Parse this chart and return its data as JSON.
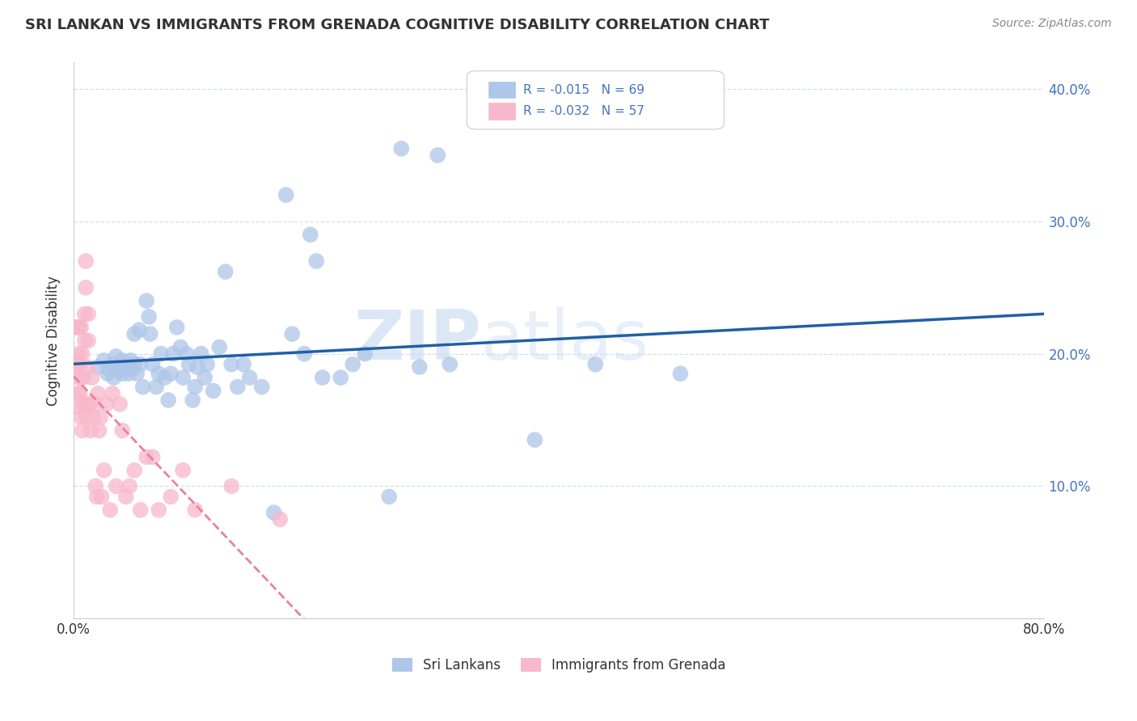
{
  "title": "SRI LANKAN VS IMMIGRANTS FROM GRENADA COGNITIVE DISABILITY CORRELATION CHART",
  "source": "Source: ZipAtlas.com",
  "ylabel": "Cognitive Disability",
  "xmin": 0.0,
  "xmax": 0.8,
  "ymin": 0.0,
  "ymax": 0.42,
  "yticks": [
    0.1,
    0.2,
    0.3,
    0.4
  ],
  "ytick_labels": [
    "10.0%",
    "20.0%",
    "30.0%",
    "40.0%"
  ],
  "xticks": [
    0.0,
    0.1,
    0.2,
    0.3,
    0.4,
    0.5,
    0.6,
    0.7,
    0.8
  ],
  "xtick_labels": [
    "0.0%",
    "",
    "",
    "",
    "",
    "",
    "",
    "",
    "80.0%"
  ],
  "legend_r1": "-0.015",
  "legend_n1": "69",
  "legend_r2": "-0.032",
  "legend_n2": "57",
  "sri_lanka_color": "#aec6e8",
  "grenada_color": "#f7b8cb",
  "sri_lanka_edge_color": "#aec6e8",
  "grenada_edge_color": "#f7b8cb",
  "sri_lanka_line_color": "#1f5fa6",
  "grenada_line_color": "#e8829a",
  "watermark_zip": "ZIP",
  "watermark_atlas": "atlas",
  "note_color": "#4472c4",
  "sri_lanka_x": [
    0.02,
    0.025,
    0.028,
    0.03,
    0.032,
    0.033,
    0.035,
    0.038,
    0.04,
    0.04,
    0.042,
    0.044,
    0.045,
    0.047,
    0.048,
    0.05,
    0.05,
    0.052,
    0.054,
    0.055,
    0.057,
    0.06,
    0.062,
    0.063,
    0.065,
    0.068,
    0.07,
    0.072,
    0.075,
    0.078,
    0.08,
    0.082,
    0.085,
    0.088,
    0.09,
    0.093,
    0.095,
    0.098,
    0.1,
    0.102,
    0.105,
    0.108,
    0.11,
    0.115,
    0.12,
    0.125,
    0.13,
    0.135,
    0.14,
    0.145,
    0.155,
    0.165,
    0.175,
    0.18,
    0.19,
    0.195,
    0.2,
    0.205,
    0.22,
    0.23,
    0.24,
    0.26,
    0.27,
    0.285,
    0.3,
    0.31,
    0.38,
    0.43,
    0.5
  ],
  "sri_lanka_y": [
    0.19,
    0.195,
    0.185,
    0.188,
    0.192,
    0.182,
    0.198,
    0.188,
    0.195,
    0.185,
    0.19,
    0.192,
    0.185,
    0.195,
    0.188,
    0.215,
    0.192,
    0.185,
    0.218,
    0.192,
    0.175,
    0.24,
    0.228,
    0.215,
    0.192,
    0.175,
    0.185,
    0.2,
    0.182,
    0.165,
    0.185,
    0.2,
    0.22,
    0.205,
    0.182,
    0.2,
    0.192,
    0.165,
    0.175,
    0.19,
    0.2,
    0.182,
    0.192,
    0.172,
    0.205,
    0.262,
    0.192,
    0.175,
    0.192,
    0.182,
    0.175,
    0.08,
    0.32,
    0.215,
    0.2,
    0.29,
    0.27,
    0.182,
    0.182,
    0.192,
    0.2,
    0.092,
    0.355,
    0.19,
    0.35,
    0.192,
    0.135,
    0.192,
    0.185
  ],
  "grenada_x": [
    0.002,
    0.002,
    0.003,
    0.003,
    0.003,
    0.004,
    0.004,
    0.004,
    0.005,
    0.005,
    0.005,
    0.006,
    0.006,
    0.006,
    0.007,
    0.007,
    0.008,
    0.008,
    0.009,
    0.009,
    0.01,
    0.01,
    0.01,
    0.011,
    0.011,
    0.012,
    0.012,
    0.013,
    0.014,
    0.015,
    0.016,
    0.017,
    0.018,
    0.019,
    0.02,
    0.021,
    0.022,
    0.023,
    0.025,
    0.027,
    0.03,
    0.032,
    0.035,
    0.038,
    0.04,
    0.043,
    0.046,
    0.05,
    0.055,
    0.06,
    0.065,
    0.07,
    0.08,
    0.09,
    0.1,
    0.13,
    0.17
  ],
  "grenada_y": [
    0.19,
    0.22,
    0.16,
    0.22,
    0.195,
    0.17,
    0.2,
    0.182,
    0.17,
    0.192,
    0.22,
    0.152,
    0.182,
    0.22,
    0.142,
    0.2,
    0.162,
    0.182,
    0.21,
    0.23,
    0.25,
    0.27,
    0.152,
    0.162,
    0.19,
    0.23,
    0.21,
    0.162,
    0.142,
    0.182,
    0.152,
    0.162,
    0.1,
    0.092,
    0.17,
    0.142,
    0.152,
    0.092,
    0.112,
    0.162,
    0.082,
    0.17,
    0.1,
    0.162,
    0.142,
    0.092,
    0.1,
    0.112,
    0.082,
    0.122,
    0.122,
    0.082,
    0.092,
    0.112,
    0.082,
    0.1,
    0.075
  ]
}
